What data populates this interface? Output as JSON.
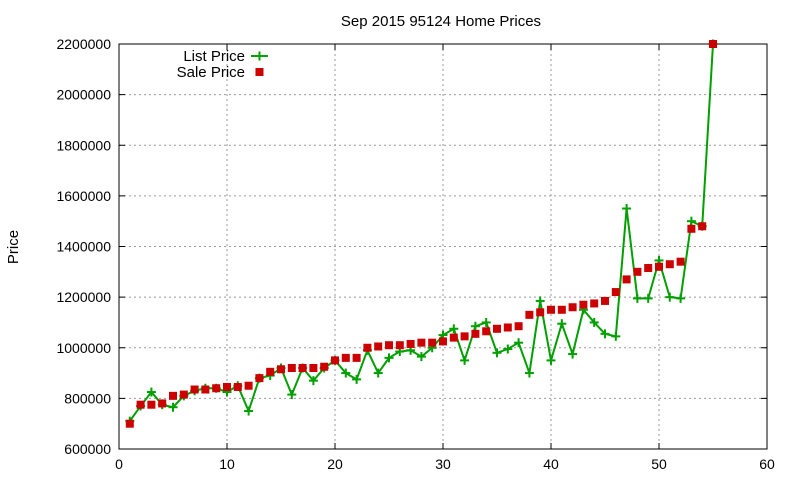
{
  "chart_data": {
    "type": "line",
    "title": "Sep 2015 95124 Home Prices",
    "xlabel": "",
    "ylabel": "Price",
    "xlim": [
      0,
      60
    ],
    "ylim": [
      600000,
      2200000
    ],
    "xticks": [
      0,
      10,
      20,
      30,
      40,
      50,
      60
    ],
    "yticks": [
      600000,
      800000,
      1000000,
      1200000,
      1400000,
      1600000,
      1800000,
      2000000,
      2200000
    ],
    "grid": true,
    "legend_position": "top-left",
    "series": [
      {
        "name": "List Price",
        "style": "line-plus",
        "color": "#00a000",
        "x": [
          1,
          2,
          3,
          4,
          5,
          6,
          7,
          8,
          9,
          10,
          11,
          12,
          13,
          14,
          15,
          16,
          17,
          18,
          19,
          20,
          21,
          22,
          23,
          24,
          25,
          26,
          27,
          28,
          29,
          30,
          31,
          32,
          33,
          34,
          35,
          36,
          37,
          38,
          39,
          40,
          41,
          42,
          43,
          44,
          45,
          46,
          47,
          48,
          49,
          50,
          51,
          52,
          53,
          54,
          55
        ],
        "y": [
          710000,
          770000,
          825000,
          775000,
          765000,
          810000,
          830000,
          840000,
          840000,
          825000,
          850000,
          750000,
          880000,
          890000,
          920000,
          815000,
          920000,
          870000,
          920000,
          950000,
          900000,
          875000,
          990000,
          900000,
          960000,
          985000,
          990000,
          965000,
          1000000,
          1050000,
          1075000,
          950000,
          1085000,
          1100000,
          980000,
          995000,
          1020000,
          900000,
          1185000,
          950000,
          1095000,
          975000,
          1150000,
          1100000,
          1055000,
          1045000,
          1550000,
          1195000,
          1195000,
          1345000,
          1200000,
          1195000,
          1500000,
          1480000,
          2200000
        ]
      },
      {
        "name": "Sale Price",
        "style": "square",
        "color": "#cc0000",
        "x": [
          1,
          2,
          3,
          4,
          5,
          6,
          7,
          8,
          9,
          10,
          11,
          12,
          13,
          14,
          15,
          16,
          17,
          18,
          19,
          20,
          21,
          22,
          23,
          24,
          25,
          26,
          27,
          28,
          29,
          30,
          31,
          32,
          33,
          34,
          35,
          36,
          37,
          38,
          39,
          40,
          41,
          42,
          43,
          44,
          45,
          46,
          47,
          48,
          49,
          50,
          51,
          52,
          53,
          54,
          55
        ],
        "y": [
          700000,
          775000,
          775000,
          780000,
          810000,
          815000,
          835000,
          835000,
          840000,
          845000,
          845000,
          850000,
          880000,
          905000,
          915000,
          920000,
          920000,
          920000,
          925000,
          950000,
          960000,
          960000,
          1000000,
          1005000,
          1010000,
          1010000,
          1015000,
          1020000,
          1020000,
          1025000,
          1040000,
          1045000,
          1055000,
          1065000,
          1075000,
          1080000,
          1085000,
          1130000,
          1140000,
          1150000,
          1150000,
          1160000,
          1170000,
          1175000,
          1185000,
          1220000,
          1270000,
          1300000,
          1315000,
          1320000,
          1330000,
          1340000,
          1470000,
          1480000,
          2200000
        ]
      }
    ]
  }
}
